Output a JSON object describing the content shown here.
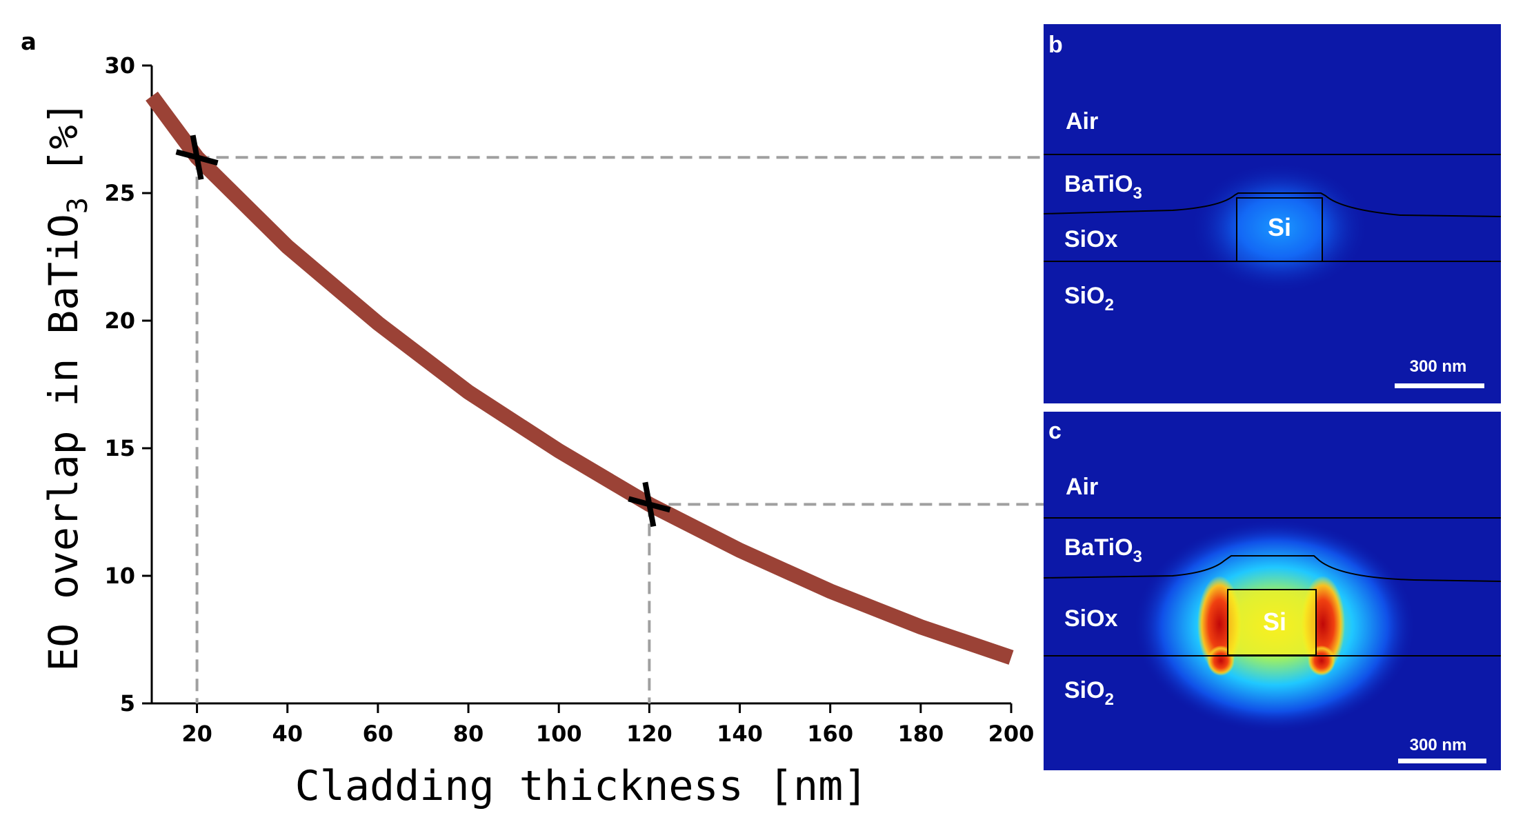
{
  "panel_a": {
    "letter": "a",
    "chart_data": {
      "type": "line",
      "title": "",
      "xlabel": "Cladding thickness [nm]",
      "ylabel_main": "EO overlap in BaTiO",
      "ylabel_sub": "3",
      "ylabel_tail": " [%]",
      "xlim": [
        10,
        200
      ],
      "ylim": [
        5,
        30
      ],
      "xticks": [
        20,
        40,
        60,
        80,
        100,
        120,
        140,
        160,
        180,
        200
      ],
      "yticks": [
        5,
        10,
        15,
        20,
        25,
        30
      ],
      "series": [
        {
          "name": "EO overlap",
          "color": "#9b4236",
          "x": [
            10,
            20,
            40,
            60,
            80,
            100,
            120,
            140,
            160,
            180,
            200
          ],
          "y": [
            28.8,
            26.4,
            22.9,
            19.9,
            17.2,
            14.9,
            12.8,
            11.0,
            9.4,
            8.0,
            6.8
          ]
        }
      ],
      "markers": [
        {
          "x": 20,
          "y": 26.4,
          "target": "b"
        },
        {
          "x": 120,
          "y": 12.8,
          "target": "c"
        }
      ],
      "grid": false
    }
  },
  "panel_b": {
    "letter": "b",
    "labels": {
      "air": "Air",
      "batio": "BaTiO",
      "batio_sub": "3",
      "siox": "SiOx",
      "sio2": "SiO",
      "sio2_sub": "2",
      "si": "Si"
    },
    "scale_bar": "300 nm",
    "colors": {
      "background": "#0c18a8",
      "field_outer": "#1040e8",
      "field_inner": "#1aa8ff"
    }
  },
  "panel_c": {
    "letter": "c",
    "labels": {
      "air": "Air",
      "batio": "BaTiO",
      "batio_sub": "3",
      "siox": "SiOx",
      "sio2": "SiO",
      "sio2_sub": "2",
      "si": "Si"
    },
    "scale_bar": "300 nm",
    "colors": {
      "background": "#0c18a8",
      "field_outer": "#20c8ff",
      "field_mid": "#f0f020",
      "field_hot": "#d01010"
    }
  }
}
